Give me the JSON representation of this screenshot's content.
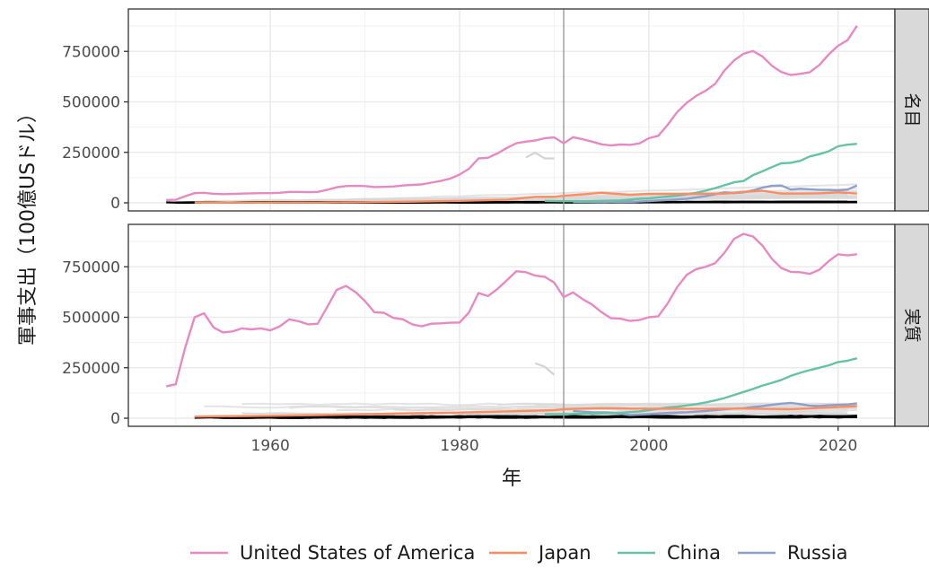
{
  "chart_data": {
    "type": "line",
    "xlabel": "年",
    "ylabel": "軍事支出（100億USドル）",
    "xlim": [
      1945,
      2026
    ],
    "ylim": [
      -40000,
      960000
    ],
    "x_ticks": [
      1960,
      1980,
      2000,
      2020
    ],
    "y_ticks": [
      0,
      250000,
      500000,
      750000
    ],
    "y_tick_labels": [
      "0",
      "250000",
      "500000",
      "750000"
    ],
    "vline_x": 1991,
    "grid": true,
    "legend_position": "bottom",
    "panels": [
      {
        "strip": "名目",
        "series": [
          {
            "name": "United States of America",
            "color": "#e78ac3",
            "x": [
              1949,
              1950,
              1951,
              1952,
              1953,
              1954,
              1955,
              1956,
              1957,
              1958,
              1959,
              1960,
              1961,
              1962,
              1963,
              1964,
              1965,
              1966,
              1967,
              1968,
              1969,
              1970,
              1971,
              1972,
              1973,
              1974,
              1975,
              1976,
              1977,
              1978,
              1979,
              1980,
              1981,
              1982,
              1983,
              1984,
              1985,
              1986,
              1987,
              1988,
              1989,
              1990,
              1991,
              1992,
              1993,
              1994,
              1995,
              1996,
              1997,
              1998,
              1999,
              2000,
              2001,
              2002,
              2003,
              2004,
              2005,
              2006,
              2007,
              2008,
              2009,
              2010,
              2011,
              2012,
              2013,
              2014,
              2015,
              2016,
              2017,
              2018,
              2019,
              2020,
              2021,
              2022
            ],
            "y": [
              14000,
              15000,
              33000,
              48000,
              50000,
              45000,
              43000,
              44000,
              46000,
              47000,
              48000,
              48000,
              50000,
              54000,
              54000,
              53000,
              54000,
              64000,
              77000,
              83000,
              84000,
              83000,
              78000,
              79000,
              81000,
              86000,
              89000,
              91000,
              100000,
              108000,
              120000,
              140000,
              169000,
              220000,
              223000,
              245000,
              272000,
              295000,
              303000,
              309000,
              320000,
              324000,
              295000,
              325000,
              315000,
              303000,
              290000,
              284000,
              289000,
              287000,
              294000,
              320000,
              332000,
              387000,
              450000,
              495000,
              530000,
              555000,
              589000,
              656000,
              705000,
              738000,
              752000,
              725000,
              679000,
              648000,
              633000,
              639000,
              646000,
              682000,
              734000,
              778000,
              806000,
              877000
            ]
          },
          {
            "name": "Japan",
            "color": "#fc8d62",
            "x": [
              1952,
              1955,
              1960,
              1965,
              1970,
              1975,
              1980,
              1985,
              1988,
              1990,
              1991,
              1993,
              1995,
              1998,
              2000,
              2003,
              2005,
              2008,
              2010,
              2012,
              2014,
              2016,
              2018,
              2020,
              2022
            ],
            "y": [
              1500,
              1500,
              1500,
              1500,
              3000,
              6000,
              10000,
              15000,
              30000,
              30000,
              35000,
              42000,
              50000,
              40000,
              45000,
              44000,
              44000,
              46000,
              54000,
              60000,
              46000,
              46000,
              47000,
              52000,
              46000
            ]
          },
          {
            "name": "China",
            "color": "#66c2a5",
            "x": [
              1989,
              1991,
              1993,
              1995,
              1997,
              1999,
              2000,
              2001,
              2002,
              2003,
              2004,
              2005,
              2006,
              2007,
              2008,
              2009,
              2010,
              2011,
              2012,
              2013,
              2014,
              2015,
              2016,
              2017,
              2018,
              2019,
              2020,
              2021,
              2022
            ],
            "y": [
              10000,
              8000,
              8000,
              10000,
              12000,
              20000,
              22000,
              27000,
              31000,
              35000,
              42000,
              50000,
              60000,
              73000,
              87000,
              102000,
              108000,
              137000,
              156000,
              177000,
              196000,
              198000,
              208000,
              230000,
              241000,
              255000,
              280000,
              288000,
              292000
            ]
          },
          {
            "name": "Russia",
            "color": "#8da0cb",
            "x": [
              1992,
              1994,
              1996,
              1998,
              2000,
              2002,
              2004,
              2006,
              2008,
              2009,
              2010,
              2011,
              2012,
              2013,
              2014,
              2015,
              2016,
              2017,
              2018,
              2019,
              2020,
              2021,
              2022
            ],
            "y": [
              4000,
              3500,
              5000,
              5000,
              9000,
              14000,
              20000,
              33000,
              52000,
              48000,
              52000,
              62000,
              75000,
              84000,
              86000,
              66000,
              70000,
              67000,
              64000,
              64000,
              62000,
              66000,
              86000
            ]
          }
        ]
      },
      {
        "strip": "実質",
        "series": [
          {
            "name": "United States of America",
            "color": "#e78ac3",
            "x": [
              1949,
              1950,
              1951,
              1952,
              1953,
              1954,
              1955,
              1956,
              1957,
              1958,
              1959,
              1960,
              1961,
              1962,
              1963,
              1964,
              1965,
              1966,
              1967,
              1968,
              1969,
              1970,
              1971,
              1972,
              1973,
              1974,
              1975,
              1976,
              1977,
              1978,
              1979,
              1980,
              1981,
              1982,
              1983,
              1984,
              1985,
              1986,
              1987,
              1988,
              1989,
              1990,
              1991,
              1992,
              1993,
              1994,
              1995,
              1996,
              1997,
              1998,
              1999,
              2000,
              2001,
              2002,
              2003,
              2004,
              2005,
              2006,
              2007,
              2008,
              2009,
              2010,
              2011,
              2012,
              2013,
              2014,
              2015,
              2016,
              2017,
              2018,
              2019,
              2020,
              2021,
              2022
            ],
            "y": [
              158000,
              168000,
              350000,
              500000,
              520000,
              450000,
              425000,
              430000,
              445000,
              440000,
              445000,
              435000,
              455000,
              490000,
              480000,
              465000,
              468000,
              550000,
              635000,
              655000,
              625000,
              580000,
              525000,
              522000,
              497000,
              490000,
              465000,
              455000,
              468000,
              470000,
              473000,
              474000,
              525000,
              620000,
              605000,
              640000,
              683000,
              728000,
              723000,
              706000,
              700000,
              672000,
              600000,
              623000,
              590000,
              563000,
              525000,
              495000,
              493000,
              482000,
              486000,
              500000,
              505000,
              570000,
              650000,
              710000,
              738000,
              750000,
              768000,
              820000,
              888000,
              913000,
              900000,
              855000,
              790000,
              743000,
              725000,
              723000,
              715000,
              735000,
              778000,
              812000,
              806000,
              812000
            ]
          },
          {
            "name": "Japan",
            "color": "#fc8d62",
            "x": [
              1952,
              1955,
              1960,
              1965,
              1970,
              1975,
              1980,
              1985,
              1990,
              1991,
              1995,
              2000,
              2005,
              2010,
              2015,
              2020,
              2022
            ],
            "y": [
              8000,
              10000,
              12000,
              15000,
              20000,
              24000,
              28000,
              34000,
              40000,
              45000,
              50000,
              47000,
              47000,
              48000,
              45000,
              55000,
              60000
            ]
          },
          {
            "name": "China",
            "color": "#66c2a5",
            "x": [
              1989,
              1991,
              1993,
              1995,
              1997,
              1999,
              2000,
              2001,
              2002,
              2003,
              2004,
              2005,
              2006,
              2007,
              2008,
              2009,
              2010,
              2011,
              2012,
              2013,
              2014,
              2015,
              2016,
              2017,
              2018,
              2019,
              2020,
              2021,
              2022
            ],
            "y": [
              20000,
              20000,
              22000,
              24000,
              27000,
              34000,
              40000,
              46000,
              53000,
              57000,
              63000,
              70000,
              78000,
              88000,
              100000,
              115000,
              130000,
              145000,
              162000,
              175000,
              190000,
              210000,
              225000,
              238000,
              250000,
              262000,
              278000,
              285000,
              297000
            ]
          },
          {
            "name": "Russia",
            "color": "#8da0cb",
            "x": [
              1992,
              1994,
              1996,
              1998,
              2000,
              2002,
              2004,
              2006,
              2008,
              2009,
              2010,
              2011,
              2012,
              2013,
              2014,
              2015,
              2016,
              2017,
              2018,
              2019,
              2020,
              2021,
              2022
            ],
            "y": [
              35000,
              30000,
              28000,
              16000,
              20000,
              26000,
              30000,
              36000,
              44000,
              48000,
              50000,
              55000,
              60000,
              66000,
              72000,
              76000,
              70000,
              62000,
              60000,
              64000,
              66000,
              68000,
              74000
            ]
          }
        ]
      }
    ],
    "legend": [
      "United States of America",
      "Japan",
      "China",
      "Russia"
    ]
  }
}
